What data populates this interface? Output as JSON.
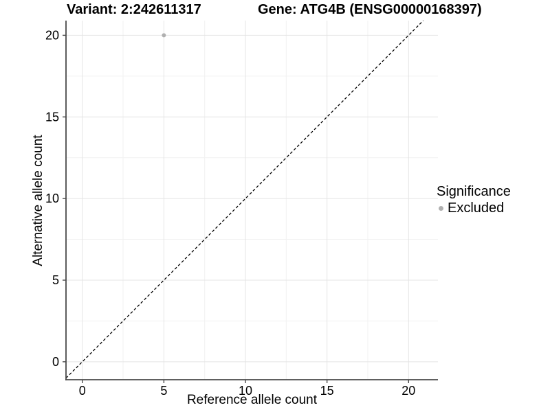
{
  "header": {
    "variant_title": "Variant: 2:242611317",
    "gene_title": "Gene: ATG4B (ENSG00000168397)"
  },
  "legend": {
    "title": "Significance",
    "items": [
      {
        "label": "Excluded",
        "color": "#b0b0b0",
        "marker": "point-icon"
      }
    ]
  },
  "chart_data": {
    "type": "scatter",
    "title": "Variant: 2:242611317 | Gene: ATG4B (ENSG00000168397)",
    "xlabel": "Reference allele count",
    "ylabel": "Alternative allele count",
    "xlim": [
      -1.0,
      21.8
    ],
    "ylim": [
      -1.1,
      20.9
    ],
    "x_ticks": [
      0,
      5,
      10,
      15,
      20
    ],
    "y_ticks": [
      0,
      5,
      10,
      15,
      20
    ],
    "x_minor_gridlines": [
      2.5,
      7.5,
      12.5,
      17.5
    ],
    "y_minor_gridlines": [
      2.5,
      7.5,
      12.5,
      17.5
    ],
    "grid": "major+minor",
    "legend_position": "right",
    "series": [
      {
        "name": "Excluded",
        "color": "#b0b0b0",
        "points": [
          {
            "x": 5,
            "y": 20
          }
        ]
      }
    ],
    "reference_line": {
      "kind": "identity y=x",
      "slope": 1,
      "intercept": 0,
      "line_style": "dashed",
      "color": "#000000"
    }
  },
  "colors": {
    "background": "#ffffff",
    "axis_line": "#4a4a4a",
    "grid_major": "#e4e4e4",
    "grid_minor": "#f1f1f1",
    "tick_text": "#000000",
    "point": "#b0b0b0"
  }
}
